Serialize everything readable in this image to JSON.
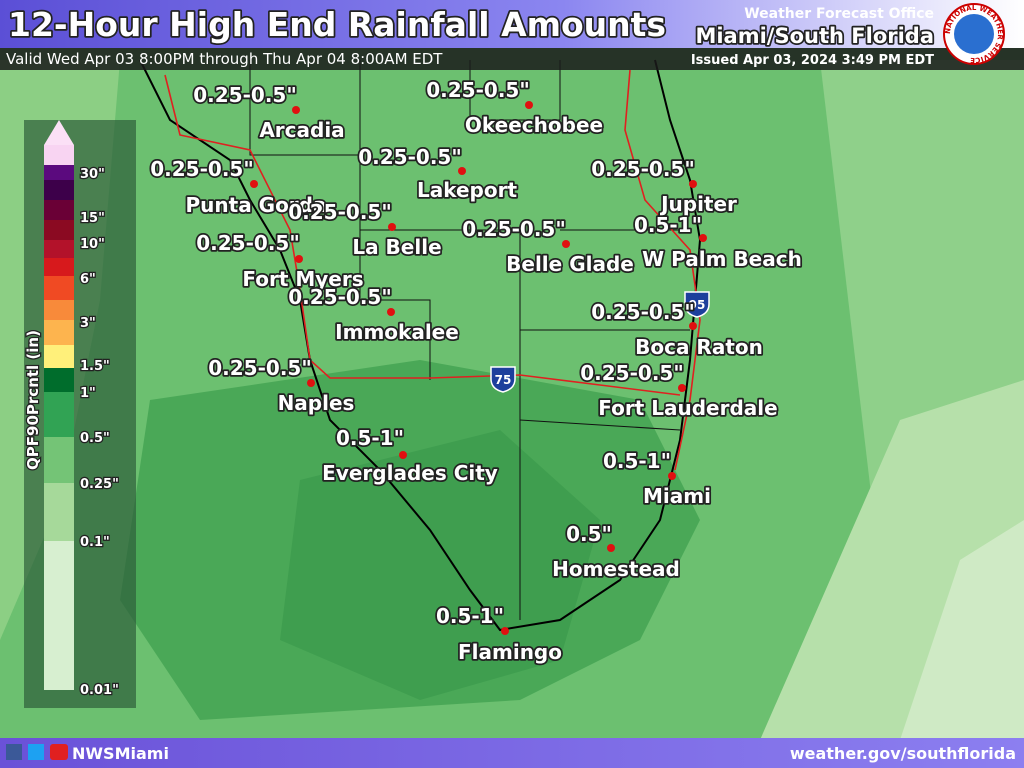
{
  "header": {
    "title": "12-Hour High End Rainfall Amounts",
    "valid": "Valid Wed Apr 03 8:00PM through Thu Apr 04 8:00AM EDT",
    "office": "Weather Forecast Office",
    "office_name": "Miami/South Florida",
    "issued": "Issued Apr 03, 2024 3:49 PM EDT",
    "logo_text": "NATIONAL WEATHER SERVICE"
  },
  "legend": {
    "title": "QPF90Prcntl (in)",
    "labels": [
      "30\"",
      "15\"",
      "10\"",
      "6\"",
      "3\"",
      "1.5\"",
      "1\"",
      "0.5\"",
      "0.25\"",
      "0.1\"",
      "0.01\""
    ]
  },
  "cities": [
    {
      "name": "Arcadia",
      "amount": "0.25-0.5\""
    },
    {
      "name": "Okeechobee",
      "amount": "0.25-0.5\""
    },
    {
      "name": "Lakeport",
      "amount": "0.25-0.5\""
    },
    {
      "name": "Punta Gorda",
      "amount": "0.25-0.5\""
    },
    {
      "name": "La Belle",
      "amount": "0.25-0.5\""
    },
    {
      "name": "Jupiter",
      "amount": "0.25-0.5\""
    },
    {
      "name": "Belle Glade",
      "amount": "0.25-0.5\""
    },
    {
      "name": "W Palm Beach",
      "amount": "0.5-1\""
    },
    {
      "name": "Fort Myers",
      "amount": "0.25-0.5\""
    },
    {
      "name": "Immokalee",
      "amount": "0.25-0.5\""
    },
    {
      "name": "Boca Raton",
      "amount": "0.25-0.5\""
    },
    {
      "name": "Naples",
      "amount": "0.25-0.5\""
    },
    {
      "name": "Fort Lauderdale",
      "amount": "0.25-0.5\""
    },
    {
      "name": "Everglades City",
      "amount": "0.5-1\""
    },
    {
      "name": "Miami",
      "amount": "0.5-1\""
    },
    {
      "name": "Homestead",
      "amount": "0.5\""
    },
    {
      "name": "Flamingo",
      "amount": "0.5-1\""
    }
  ],
  "highway_shields": [
    "75",
    "95"
  ],
  "footer": {
    "social": "NWSMiami",
    "url": "weather.gov/southflorida"
  }
}
